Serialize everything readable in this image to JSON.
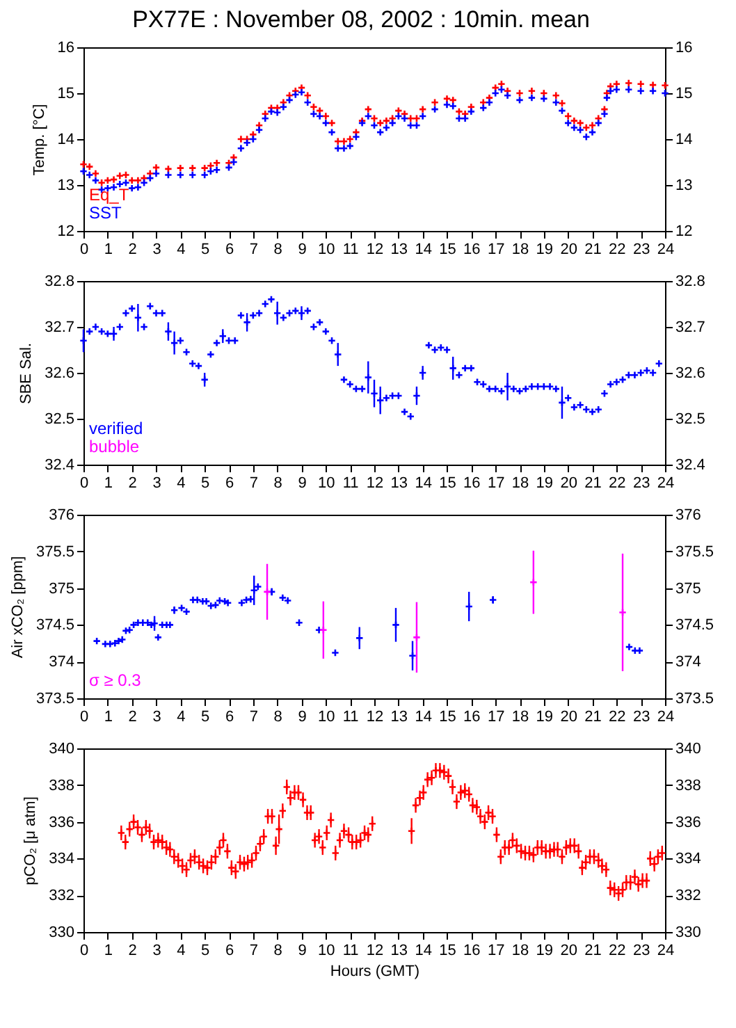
{
  "chart_data": [
    {
      "type": "scatter",
      "title": "PX77E : November 08, 2002 : 10min. mean",
      "ylabel": "Temp. [°C]",
      "marker": "cross",
      "legend": "bottom left",
      "grid": false,
      "xlim": [
        0,
        24
      ],
      "xticks": [
        0,
        1,
        2,
        3,
        4,
        5,
        6,
        7,
        8,
        9,
        10,
        11,
        12,
        13,
        14,
        15,
        16,
        17,
        18,
        19,
        20,
        21,
        22,
        23,
        24
      ],
      "ylim": [
        12,
        16
      ],
      "yticks": [
        12,
        13,
        14,
        15,
        16
      ],
      "y2lim": [
        12,
        16
      ],
      "y2ticks": [
        12,
        13,
        14,
        15,
        16
      ],
      "x": [
        0,
        0.25,
        0.5,
        0.75,
        1,
        1.25,
        1.5,
        1.75,
        2,
        2.25,
        2.5,
        2.75,
        3,
        3.5,
        4,
        4.5,
        5,
        5.25,
        5.5,
        6,
        6.2,
        6.5,
        6.75,
        7,
        7.25,
        7.5,
        7.75,
        8,
        8.25,
        8.5,
        8.75,
        9,
        9.25,
        9.5,
        9.75,
        10,
        10.25,
        10.5,
        10.75,
        11,
        11.25,
        11.5,
        11.75,
        12,
        12.25,
        12.5,
        12.75,
        13,
        13.25,
        13.5,
        13.75,
        14,
        14.5,
        15,
        15.25,
        15.5,
        15.75,
        16,
        16.5,
        16.75,
        17,
        17.25,
        17.5,
        18,
        18.5,
        19,
        19.5,
        19.75,
        20,
        20.25,
        20.5,
        20.75,
        21,
        21.25,
        21.5,
        21.6,
        21.75,
        22,
        22.5,
        23,
        23.5,
        24
      ],
      "series": [
        {
          "name": "Eq_T",
          "color": "#ff0000",
          "values": [
            13.45,
            13.4,
            13.25,
            13.05,
            13.1,
            13.12,
            13.2,
            13.22,
            13.1,
            13.1,
            13.15,
            13.25,
            13.38,
            13.35,
            13.37,
            13.37,
            13.37,
            13.42,
            13.48,
            13.48,
            13.6,
            14.0,
            14.0,
            14.1,
            14.3,
            14.55,
            14.68,
            14.68,
            14.8,
            14.95,
            15.05,
            15.12,
            14.95,
            14.7,
            14.62,
            14.5,
            14.35,
            13.95,
            13.95,
            14.0,
            14.15,
            14.4,
            14.65,
            14.45,
            14.35,
            14.4,
            14.45,
            14.62,
            14.55,
            14.45,
            14.45,
            14.65,
            14.8,
            14.88,
            14.85,
            14.6,
            14.55,
            14.7,
            14.8,
            14.9,
            15.12,
            15.2,
            15.05,
            15.0,
            15.05,
            15.0,
            14.95,
            14.78,
            14.5,
            14.4,
            14.35,
            14.25,
            14.3,
            14.45,
            14.65,
            15.0,
            15.15,
            15.2,
            15.22,
            15.2,
            15.18,
            15.17
          ]
        },
        {
          "name": "SST",
          "color": "#0000ff",
          "values": [
            13.3,
            13.22,
            13.1,
            12.9,
            12.93,
            12.95,
            13.02,
            13.05,
            12.93,
            12.95,
            13.05,
            13.15,
            13.25,
            13.22,
            13.22,
            13.22,
            13.22,
            13.3,
            13.33,
            13.38,
            13.5,
            13.8,
            13.92,
            14.0,
            14.2,
            14.45,
            14.6,
            14.58,
            14.7,
            14.85,
            14.97,
            15.02,
            14.8,
            14.55,
            14.5,
            14.35,
            14.15,
            13.8,
            13.8,
            13.85,
            14.05,
            14.35,
            14.5,
            14.3,
            14.15,
            14.25,
            14.35,
            14.5,
            14.45,
            14.3,
            14.3,
            14.5,
            14.65,
            14.75,
            14.72,
            14.45,
            14.45,
            14.6,
            14.68,
            14.8,
            15.0,
            15.08,
            14.95,
            14.85,
            14.9,
            14.88,
            14.8,
            14.62,
            14.35,
            14.25,
            14.2,
            14.05,
            14.15,
            14.35,
            14.55,
            14.9,
            15.05,
            15.08,
            15.08,
            15.05,
            15.05,
            15.0
          ]
        }
      ]
    },
    {
      "type": "scatter",
      "ylabel": "SBE Sal.",
      "marker": "cross",
      "legend": "bottom left",
      "grid": false,
      "xlim": [
        0,
        24
      ],
      "xticks": [
        0,
        1,
        2,
        3,
        4,
        5,
        6,
        7,
        8,
        9,
        10,
        11,
        12,
        13,
        14,
        15,
        16,
        17,
        18,
        19,
        20,
        21,
        22,
        23,
        24
      ],
      "ylim": [
        32.4,
        32.8
      ],
      "yticks": [
        32.4,
        32.5,
        32.6,
        32.7,
        32.8
      ],
      "y2lim": [
        32.4,
        32.8
      ],
      "y2ticks": [
        32.4,
        32.5,
        32.6,
        32.7,
        32.8
      ],
      "series": [
        {
          "name": "verified",
          "color": "#0000ff",
          "x": [
            0,
            0.25,
            0.5,
            0.75,
            1,
            1.25,
            1.5,
            1.75,
            2,
            2.25,
            2.5,
            2.75,
            3,
            3.25,
            3.5,
            3.75,
            4,
            4.25,
            4.5,
            4.75,
            5,
            5.25,
            5.5,
            5.75,
            6,
            6.25,
            6.5,
            6.75,
            7,
            7.25,
            7.5,
            7.75,
            8,
            8.25,
            8.5,
            8.75,
            9,
            9.25,
            9.5,
            9.75,
            10,
            10.25,
            10.5,
            10.75,
            11,
            11.25,
            11.5,
            11.75,
            12,
            12.25,
            12.5,
            12.75,
            13,
            13.25,
            13.5,
            13.75,
            14,
            14.25,
            14.5,
            14.75,
            15,
            15.25,
            15.5,
            15.75,
            16,
            16.25,
            16.5,
            16.75,
            17,
            17.25,
            17.5,
            17.75,
            18,
            18.25,
            18.5,
            18.75,
            19,
            19.25,
            19.5,
            19.75,
            20,
            20.25,
            20.5,
            20.75,
            21,
            21.25,
            21.5,
            21.75,
            22,
            22.25,
            22.5,
            22.75,
            23,
            23.25,
            23.5,
            23.75
          ],
          "values": [
            32.67,
            32.69,
            32.7,
            32.69,
            32.685,
            32.685,
            32.7,
            32.73,
            32.74,
            32.72,
            32.7,
            32.745,
            32.73,
            32.73,
            32.69,
            32.665,
            32.67,
            32.645,
            32.62,
            32.615,
            32.585,
            32.64,
            32.665,
            32.68,
            32.67,
            32.67,
            32.725,
            32.71,
            32.725,
            32.73,
            32.75,
            32.76,
            32.73,
            32.72,
            32.73,
            32.735,
            32.73,
            32.735,
            32.7,
            32.71,
            32.69,
            32.67,
            32.64,
            32.585,
            32.575,
            32.565,
            32.565,
            32.59,
            32.555,
            32.54,
            32.545,
            32.55,
            32.55,
            32.515,
            32.505,
            32.55,
            32.6,
            32.66,
            32.65,
            32.655,
            32.65,
            32.61,
            32.595,
            32.61,
            32.61,
            32.58,
            32.575,
            32.565,
            32.565,
            32.56,
            32.57,
            32.565,
            32.56,
            32.565,
            32.57,
            32.57,
            32.57,
            32.57,
            32.565,
            32.535,
            32.545,
            32.525,
            32.53,
            32.52,
            32.515,
            32.52,
            32.555,
            32.575,
            32.58,
            32.585,
            32.595,
            32.595,
            32.6,
            32.605,
            32.6,
            32.62
          ],
          "errors": [
            0.025,
            null,
            null,
            null,
            null,
            0.015,
            null,
            null,
            null,
            0.03,
            null,
            null,
            null,
            null,
            0.02,
            0.025,
            null,
            null,
            null,
            null,
            0.015,
            null,
            null,
            0.015,
            null,
            null,
            null,
            0.02,
            null,
            null,
            null,
            null,
            0.025,
            null,
            null,
            null,
            0.015,
            null,
            null,
            null,
            null,
            null,
            0.025,
            null,
            null,
            null,
            null,
            0.035,
            0.03,
            0.03,
            null,
            null,
            null,
            null,
            null,
            0.02,
            0.015,
            null,
            null,
            null,
            null,
            0.025,
            null,
            null,
            null,
            null,
            null,
            null,
            null,
            null,
            0.03,
            null,
            null,
            null,
            null,
            null,
            null,
            null,
            null,
            0.035,
            null,
            null,
            null,
            null,
            null,
            null,
            null,
            null,
            null,
            null,
            null,
            null,
            null,
            null,
            null,
            null
          ]
        },
        {
          "name": "bubble",
          "color": "#ff00ff"
        }
      ]
    },
    {
      "type": "scatter",
      "ylabel": "Air xCO₂ [ppm]",
      "marker": "cross",
      "legend": "bottom left",
      "grid": false,
      "xlim": [
        0,
        24
      ],
      "xticks": [
        0,
        1,
        2,
        3,
        4,
        5,
        6,
        7,
        8,
        9,
        10,
        11,
        12,
        13,
        14,
        15,
        16,
        17,
        18,
        19,
        20,
        21,
        22,
        23,
        24
      ],
      "ylim": [
        373.5,
        376
      ],
      "yticks": [
        373.5,
        374,
        374.5,
        375,
        375.5,
        376
      ],
      "y2lim": [
        373.5,
        376
      ],
      "y2ticks": [
        373.5,
        374,
        374.5,
        375,
        375.5,
        376
      ],
      "series": [
        {
          "color": "#0000ff",
          "x": [
            0.55,
            0.9,
            1.1,
            1.3,
            1.45,
            1.6,
            1.75,
            1.9,
            2.07,
            2.25,
            2.45,
            2.65,
            2.8,
            2.93,
            3.08,
            3.25,
            3.43,
            3.57,
            3.75,
            4.05,
            4.25,
            4.52,
            4.7,
            4.92,
            5.07,
            5.26,
            5.45,
            5.62,
            5.83,
            5.96,
            6.53,
            6.72,
            6.9,
            7.04,
            7.2,
            7.77,
            8.22,
            8.43,
            8.9,
            9.72,
            10.39,
            11.39,
            12.89,
            13.58,
            15.91,
            16.9,
            22.52,
            22.76,
            22.95
          ],
          "values": [
            374.28,
            374.24,
            374.24,
            374.25,
            374.28,
            374.3,
            374.42,
            374.43,
            374.5,
            374.53,
            374.53,
            374.53,
            374.5,
            374.52,
            374.33,
            374.5,
            374.5,
            374.5,
            374.7,
            374.73,
            374.68,
            374.84,
            374.84,
            374.82,
            374.82,
            374.76,
            374.77,
            374.83,
            374.82,
            374.8,
            374.8,
            374.84,
            374.85,
            374.97,
            375.02,
            374.95,
            374.87,
            374.83,
            374.53,
            374.43,
            374.12,
            374.32,
            374.5,
            374.08,
            374.75,
            374.84,
            374.2,
            374.15,
            374.15
          ],
          "errors": [
            null,
            null,
            null,
            null,
            null,
            null,
            null,
            null,
            null,
            null,
            null,
            null,
            null,
            0.1,
            null,
            null,
            null,
            null,
            0.05,
            null,
            null,
            null,
            null,
            null,
            null,
            null,
            null,
            null,
            null,
            null,
            null,
            null,
            null,
            0.2,
            null,
            0.05,
            null,
            null,
            null,
            null,
            null,
            0.15,
            0.23,
            0.2,
            0.2,
            0.05,
            null,
            null,
            null
          ]
        },
        {
          "name": "σ ≥ 0.3",
          "color": "#ff00ff",
          "x": [
            7.58,
            9.9,
            13.75,
            18.57,
            22.25
          ],
          "values": [
            374.95,
            374.43,
            374.33,
            375.08,
            374.67
          ],
          "errors": [
            0.38,
            0.39,
            0.48,
            0.43,
            0.8
          ]
        }
      ]
    },
    {
      "type": "scatter",
      "ylabel": "pCO₂ [μ atm]",
      "xlabel": "Hours (GMT)",
      "marker": "cross",
      "grid": false,
      "xlim": [
        0,
        24
      ],
      "xticks": [
        0,
        1,
        2,
        3,
        4,
        5,
        6,
        7,
        8,
        9,
        10,
        11,
        12,
        13,
        14,
        15,
        16,
        17,
        18,
        19,
        20,
        21,
        22,
        23,
        24
      ],
      "ylim": [
        330,
        340
      ],
      "yticks": [
        330,
        332,
        334,
        336,
        338,
        340
      ],
      "y2lim": [
        330,
        340
      ],
      "y2ticks": [
        330,
        332,
        334,
        336,
        338,
        340
      ],
      "series": [
        {
          "color": "#ff0000",
          "x": [
            1.56,
            1.73,
            1.9,
            2.07,
            2.24,
            2.41,
            2.58,
            2.73,
            2.9,
            3.08,
            3.25,
            3.42,
            3.57,
            3.74,
            3.91,
            4.08,
            4.25,
            4.42,
            4.59,
            4.77,
            4.94,
            5.11,
            5.28,
            5.45,
            5.62,
            5.77,
            5.94,
            6.11,
            6.28,
            6.46,
            6.63,
            6.78,
            6.95,
            7.12,
            7.29,
            7.44,
            7.61,
            7.78,
            7.94,
            8.07,
            8.22,
            8.39,
            8.54,
            8.71,
            8.87,
            9.06,
            9.23,
            9.38,
            9.55,
            9.72,
            9.87,
            10.04,
            10.21,
            10.4,
            10.58,
            10.75,
            10.94,
            11.09,
            11.26,
            11.43,
            11.6,
            11.75,
            11.92,
            13.54,
            13.71,
            13.88,
            14.03,
            14.2,
            14.37,
            14.54,
            14.71,
            14.88,
            15.06,
            15.23,
            15.4,
            15.57,
            15.74,
            15.91,
            16.06,
            16.23,
            16.38,
            16.56,
            16.71,
            16.88,
            17.05,
            17.22,
            17.39,
            17.56,
            17.71,
            17.88,
            18.06,
            18.23,
            18.4,
            18.57,
            18.74,
            18.91,
            19.08,
            19.25,
            19.42,
            19.57,
            19.75,
            19.92,
            20.09,
            20.26,
            20.43,
            20.58,
            20.73,
            20.9,
            21.07,
            21.25,
            21.4,
            21.57,
            21.74,
            21.91,
            22.08,
            22.25,
            22.4,
            22.57,
            22.75,
            22.9,
            23.07,
            23.24,
            23.39,
            23.56,
            23.71,
            23.88
          ],
          "values": [
            335.4,
            334.9,
            335.6,
            336.0,
            335.7,
            335.3,
            335.7,
            335.5,
            334.9,
            335.0,
            334.9,
            334.6,
            334.5,
            334.1,
            333.9,
            333.6,
            333.4,
            333.9,
            334.1,
            333.8,
            333.6,
            333.5,
            333.8,
            334.1,
            334.6,
            335.0,
            334.4,
            333.5,
            333.3,
            333.8,
            333.7,
            333.8,
            333.9,
            334.3,
            334.8,
            335.2,
            336.3,
            336.3,
            334.7,
            335.6,
            336.6,
            337.9,
            337.3,
            337.6,
            337.6,
            337.2,
            336.5,
            336.5,
            335.0,
            335.2,
            334.6,
            335.4,
            336.1,
            334.3,
            335.0,
            335.5,
            335.3,
            334.9,
            334.9,
            335.0,
            335.4,
            335.3,
            335.9,
            335.5,
            336.9,
            337.3,
            337.6,
            338.3,
            338.4,
            338.8,
            338.8,
            338.7,
            338.5,
            337.9,
            337.1,
            337.6,
            337.7,
            337.5,
            336.9,
            336.8,
            336.3,
            336.0,
            336.5,
            336.3,
            335.3,
            334.1,
            334.6,
            334.6,
            335.0,
            334.7,
            334.4,
            334.3,
            334.3,
            334.2,
            334.6,
            334.6,
            334.4,
            334.4,
            334.5,
            334.5,
            334.1,
            334.6,
            334.7,
            334.7,
            334.4,
            333.5,
            333.8,
            334.1,
            334.1,
            333.9,
            333.6,
            333.4,
            332.4,
            332.3,
            332.1,
            332.3,
            332.7,
            332.7,
            333.0,
            332.6,
            332.8,
            332.8,
            334.0,
            333.7,
            334.1,
            334.3
          ],
          "errors": [
            0.4,
            0.4,
            0.4,
            0.4,
            0.4,
            0.4,
            0.4,
            0.4,
            0.4,
            0.4,
            0.4,
            0.4,
            0.4,
            0.4,
            0.4,
            0.4,
            0.4,
            0.4,
            0.4,
            0.4,
            0.4,
            0.4,
            0.4,
            0.4,
            0.4,
            0.4,
            0.4,
            0.4,
            0.4,
            0.4,
            0.4,
            0.4,
            0.4,
            0.4,
            0.4,
            0.4,
            0.4,
            0.4,
            0.5,
            0.8,
            0.4,
            0.4,
            0.4,
            0.4,
            0.4,
            0.4,
            0.4,
            0.4,
            0.4,
            0.4,
            0.4,
            0.4,
            0.4,
            0.4,
            0.4,
            0.4,
            0.4,
            0.4,
            0.4,
            0.4,
            0.4,
            0.4,
            0.4,
            0.7,
            0.4,
            0.4,
            0.4,
            0.4,
            0.4,
            0.4,
            0.4,
            0.4,
            0.4,
            0.4,
            0.4,
            0.4,
            0.4,
            0.4,
            0.4,
            0.4,
            0.4,
            0.4,
            0.4,
            0.4,
            0.4,
            0.4,
            0.4,
            0.4,
            0.4,
            0.4,
            0.4,
            0.4,
            0.4,
            0.4,
            0.4,
            0.4,
            0.4,
            0.4,
            0.4,
            0.4,
            0.4,
            0.4,
            0.4,
            0.4,
            0.4,
            0.4,
            0.4,
            0.4,
            0.4,
            0.4,
            0.4,
            0.4,
            0.4,
            0.4,
            0.4,
            0.4,
            0.4,
            0.4,
            0.4,
            0.4,
            0.4,
            0.4,
            0.4,
            0.4,
            0.4,
            0.4
          ]
        }
      ]
    }
  ]
}
